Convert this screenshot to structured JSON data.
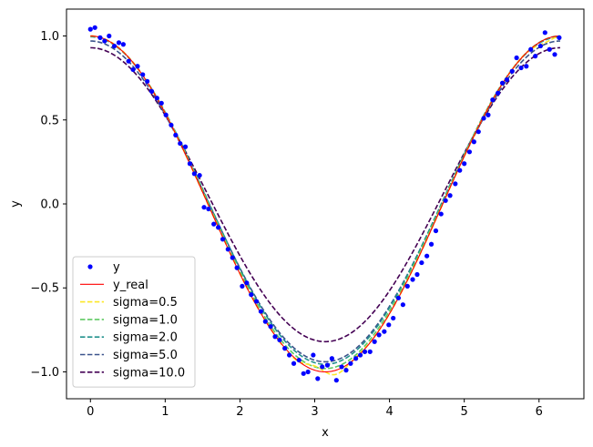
{
  "chart_data": {
    "type": "line",
    "xlabel": "x",
    "ylabel": "y",
    "xlim": [
      -0.32,
      6.6
    ],
    "ylim": [
      -1.16,
      1.16
    ],
    "grid": false,
    "legend_placement": "lower-left",
    "x_ticks": [
      0,
      1,
      2,
      3,
      4,
      5,
      6
    ],
    "x_tick_labels": [
      "0",
      "1",
      "2",
      "3",
      "4",
      "5",
      "6"
    ],
    "y_ticks": [
      1.0,
      0.5,
      0.0,
      -0.5,
      -1.0
    ],
    "y_tick_labels": [
      "1.0",
      "0.5",
      "0.0",
      "−0.5",
      "−1.0"
    ],
    "scatter": {
      "name": "y",
      "color": "#0000ff",
      "points": [
        [
          0.0,
          1.04
        ],
        [
          0.06,
          1.05
        ],
        [
          0.13,
          0.99
        ],
        [
          0.19,
          0.97
        ],
        [
          0.25,
          1.0
        ],
        [
          0.32,
          0.94
        ],
        [
          0.38,
          0.96
        ],
        [
          0.44,
          0.95
        ],
        [
          0.51,
          0.85
        ],
        [
          0.57,
          0.8
        ],
        [
          0.63,
          0.82
        ],
        [
          0.7,
          0.77
        ],
        [
          0.76,
          0.73
        ],
        [
          0.82,
          0.67
        ],
        [
          0.89,
          0.63
        ],
        [
          0.95,
          0.6
        ],
        [
          1.01,
          0.53
        ],
        [
          1.08,
          0.47
        ],
        [
          1.14,
          0.41
        ],
        [
          1.2,
          0.36
        ],
        [
          1.27,
          0.34
        ],
        [
          1.33,
          0.24
        ],
        [
          1.39,
          0.18
        ],
        [
          1.46,
          0.17
        ],
        [
          1.52,
          -0.02
        ],
        [
          1.58,
          -0.03
        ],
        [
          1.65,
          -0.12
        ],
        [
          1.71,
          -0.14
        ],
        [
          1.77,
          -0.21
        ],
        [
          1.84,
          -0.27
        ],
        [
          1.9,
          -0.32
        ],
        [
          1.96,
          -0.38
        ],
        [
          2.03,
          -0.49
        ],
        [
          2.09,
          -0.47
        ],
        [
          2.15,
          -0.54
        ],
        [
          2.22,
          -0.58
        ],
        [
          2.28,
          -0.64
        ],
        [
          2.34,
          -0.7
        ],
        [
          2.41,
          -0.73
        ],
        [
          2.47,
          -0.79
        ],
        [
          2.53,
          -0.81
        ],
        [
          2.6,
          -0.86
        ],
        [
          2.66,
          -0.9
        ],
        [
          2.72,
          -0.95
        ],
        [
          2.79,
          -0.93
        ],
        [
          2.85,
          -1.01
        ],
        [
          2.91,
          -1.0
        ],
        [
          2.98,
          -0.9
        ],
        [
          3.04,
          -1.04
        ],
        [
          3.1,
          -0.97
        ],
        [
          3.17,
          -0.96
        ],
        [
          3.23,
          -0.92
        ],
        [
          3.29,
          -1.05
        ],
        [
          3.36,
          -0.97
        ],
        [
          3.42,
          -0.99
        ],
        [
          3.48,
          -0.95
        ],
        [
          3.55,
          -0.92
        ],
        [
          3.61,
          -0.9
        ],
        [
          3.67,
          -0.88
        ],
        [
          3.74,
          -0.88
        ],
        [
          3.8,
          -0.82
        ],
        [
          3.86,
          -0.78
        ],
        [
          3.93,
          -0.76
        ],
        [
          3.99,
          -0.72
        ],
        [
          4.05,
          -0.68
        ],
        [
          4.12,
          -0.56
        ],
        [
          4.18,
          -0.6
        ],
        [
          4.24,
          -0.49
        ],
        [
          4.31,
          -0.45
        ],
        [
          4.37,
          -0.42
        ],
        [
          4.43,
          -0.35
        ],
        [
          4.5,
          -0.31
        ],
        [
          4.56,
          -0.24
        ],
        [
          4.62,
          -0.16
        ],
        [
          4.69,
          -0.06
        ],
        [
          4.75,
          0.02
        ],
        [
          4.81,
          0.05
        ],
        [
          4.88,
          0.12
        ],
        [
          4.94,
          0.2
        ],
        [
          5.0,
          0.24
        ],
        [
          5.07,
          0.31
        ],
        [
          5.13,
          0.37
        ],
        [
          5.19,
          0.43
        ],
        [
          5.26,
          0.51
        ],
        [
          5.32,
          0.53
        ],
        [
          5.38,
          0.62
        ],
        [
          5.45,
          0.66
        ],
        [
          5.51,
          0.72
        ],
        [
          5.57,
          0.74
        ],
        [
          5.64,
          0.79
        ],
        [
          5.7,
          0.87
        ],
        [
          5.76,
          0.81
        ],
        [
          5.83,
          0.82
        ],
        [
          5.89,
          0.92
        ],
        [
          5.95,
          0.88
        ],
        [
          6.02,
          0.94
        ],
        [
          6.08,
          1.02
        ],
        [
          6.14,
          0.92
        ],
        [
          6.21,
          0.89
        ],
        [
          6.27,
          0.99
        ]
      ]
    },
    "series": [
      {
        "name": "y_real",
        "color": "#ff0000",
        "dash": "solid",
        "kind": "cos",
        "amp": 1.0,
        "shift": 0.0
      },
      {
        "name": "sigma=0.5",
        "color": "#fde725",
        "dash": "dashed",
        "kind": "wiggly",
        "amp": 1.0,
        "shift": 0.0
      },
      {
        "name": "sigma=1.0",
        "color": "#5ec962",
        "dash": "dashed",
        "kind": "cos",
        "amp": 0.99,
        "shift": 0.01
      },
      {
        "name": "sigma=2.0",
        "color": "#21918c",
        "dash": "dashed",
        "kind": "cos",
        "amp": 0.975,
        "shift": 0.02
      },
      {
        "name": "sigma=5.0",
        "color": "#3b528b",
        "dash": "dashed",
        "kind": "cos",
        "amp": 0.955,
        "shift": 0.015
      },
      {
        "name": "sigma=10.0",
        "color": "#440154",
        "dash": "dashed",
        "kind": "cos",
        "amp": 0.875,
        "shift": 0.055
      }
    ],
    "legend": [
      {
        "label": "y",
        "marker": "dot",
        "color": "#0000ff"
      },
      {
        "label": "y_real",
        "marker": "solid",
        "color": "#ff0000"
      },
      {
        "label": "sigma=0.5",
        "marker": "dashed",
        "color": "#fde725"
      },
      {
        "label": "sigma=1.0",
        "marker": "dashed",
        "color": "#5ec962"
      },
      {
        "label": "sigma=2.0",
        "marker": "dashed",
        "color": "#21918c"
      },
      {
        "label": "sigma=5.0",
        "marker": "dashed",
        "color": "#3b528b"
      },
      {
        "label": "sigma=10.0",
        "marker": "dashed",
        "color": "#440154"
      }
    ]
  }
}
